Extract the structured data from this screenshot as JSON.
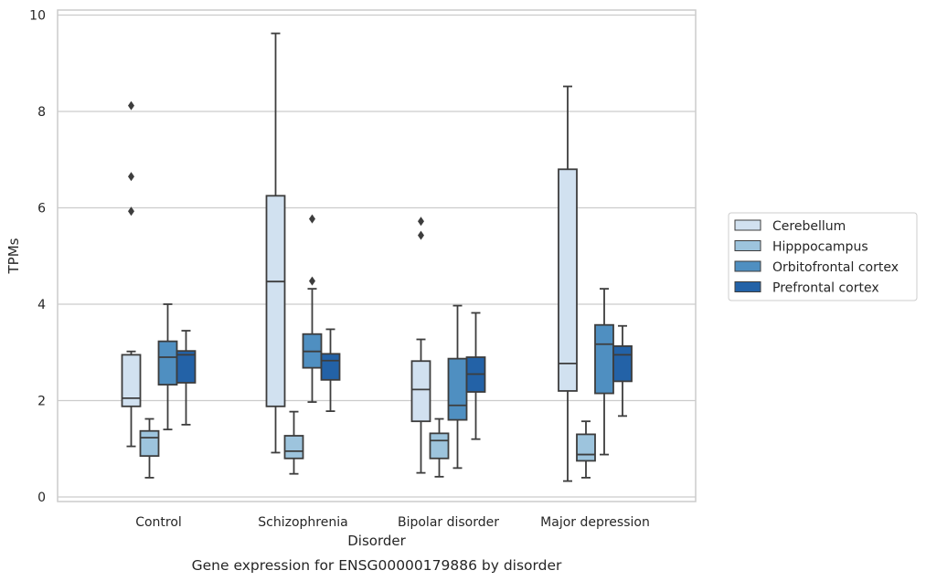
{
  "chart_data": {
    "type": "box",
    "caption": "Gene expression for ENSG00000179886 by disorder",
    "xlabel": "Disorder",
    "ylabel": "TPMs",
    "ylim": [
      -0.15,
      10.1
    ],
    "yticks": [
      0,
      2,
      4,
      6,
      8,
      10
    ],
    "grid": "horizontal",
    "legend_position": "right",
    "categories": [
      "Control",
      "Schizophrenia",
      "Bipolar disorder",
      "Major depression"
    ],
    "series": [
      {
        "name": "Cerebellum",
        "color": "#d1e1f0",
        "boxes": [
          {
            "whisker_low": 1.05,
            "q1": 1.88,
            "median": 2.05,
            "q3": 2.95,
            "whisker_high": 3.02,
            "outliers": [
              5.93,
              6.65,
              8.12
            ]
          },
          {
            "whisker_low": 0.92,
            "q1": 1.88,
            "median": 4.47,
            "q3": 6.25,
            "whisker_high": 9.62,
            "outliers": []
          },
          {
            "whisker_low": 0.5,
            "q1": 1.57,
            "median": 2.23,
            "q3": 2.82,
            "whisker_high": 3.27,
            "outliers": [
              5.43,
              5.72
            ]
          },
          {
            "whisker_low": 0.33,
            "q1": 2.2,
            "median": 2.77,
            "q3": 6.8,
            "whisker_high": 8.52,
            "outliers": []
          }
        ]
      },
      {
        "name": "Hipppocampus",
        "color": "#9dc4dd",
        "boxes": [
          {
            "whisker_low": 0.4,
            "q1": 0.85,
            "median": 1.23,
            "q3": 1.37,
            "whisker_high": 1.62,
            "outliers": []
          },
          {
            "whisker_low": 0.48,
            "q1": 0.8,
            "median": 0.95,
            "q3": 1.27,
            "whisker_high": 1.77,
            "outliers": []
          },
          {
            "whisker_low": 0.42,
            "q1": 0.8,
            "median": 1.17,
            "q3": 1.32,
            "whisker_high": 1.62,
            "outliers": []
          },
          {
            "whisker_low": 0.4,
            "q1": 0.75,
            "median": 0.88,
            "q3": 1.3,
            "whisker_high": 1.57,
            "outliers": []
          }
        ]
      },
      {
        "name": "Orbitofrontal cortex",
        "color": "#4f8fc1",
        "boxes": [
          {
            "whisker_low": 1.4,
            "q1": 2.33,
            "median": 2.9,
            "q3": 3.23,
            "whisker_high": 4.0,
            "outliers": []
          },
          {
            "whisker_low": 1.97,
            "q1": 2.68,
            "median": 3.02,
            "q3": 3.38,
            "whisker_high": 4.32,
            "outliers": [
              4.48,
              5.77
            ]
          },
          {
            "whisker_low": 0.6,
            "q1": 1.6,
            "median": 1.9,
            "q3": 2.87,
            "whisker_high": 3.97,
            "outliers": []
          },
          {
            "whisker_low": 0.88,
            "q1": 2.15,
            "median": 3.17,
            "q3": 3.57,
            "whisker_high": 4.32,
            "outliers": []
          }
        ]
      },
      {
        "name": "Prefrontal cortex",
        "color": "#2362a7",
        "boxes": [
          {
            "whisker_low": 1.5,
            "q1": 2.37,
            "median": 2.95,
            "q3": 3.03,
            "whisker_high": 3.45,
            "outliers": []
          },
          {
            "whisker_low": 1.78,
            "q1": 2.43,
            "median": 2.83,
            "q3": 2.97,
            "whisker_high": 3.48,
            "outliers": []
          },
          {
            "whisker_low": 1.2,
            "q1": 2.18,
            "median": 2.55,
            "q3": 2.9,
            "whisker_high": 3.82,
            "outliers": []
          },
          {
            "whisker_low": 1.68,
            "q1": 2.4,
            "median": 2.95,
            "q3": 3.13,
            "whisker_high": 3.55,
            "outliers": []
          }
        ]
      }
    ]
  }
}
